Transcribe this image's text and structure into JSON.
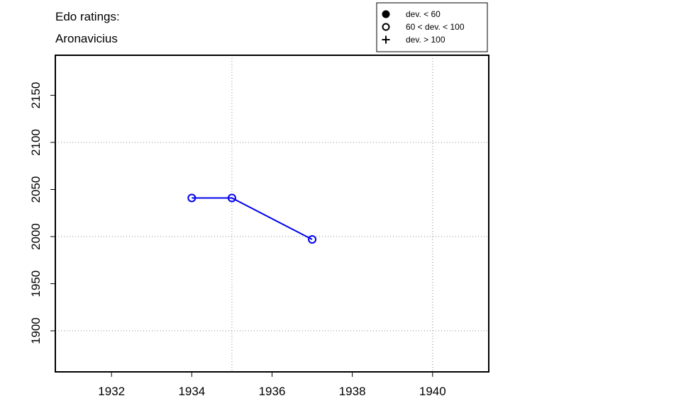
{
  "chart_data": {
    "type": "line",
    "title": "Edo ratings:",
    "subtitle": "Aronavicius",
    "x": [
      1934,
      1935,
      1937
    ],
    "series": [
      {
        "values": [
          2041,
          2041,
          1997
        ],
        "color": "#0000ee",
        "marker": "open-circle"
      }
    ],
    "xlim": [
      1930.6,
      1941.4
    ],
    "xticks": [
      1932,
      1934,
      1936,
      1938,
      1940
    ],
    "ylim": [
      1856.4,
      2192.5
    ],
    "yticks": [
      1900,
      1950,
      2000,
      2050,
      2100,
      2150
    ],
    "xgrid": [
      1935,
      1940
    ],
    "ygrid": [
      1900,
      2000,
      2100
    ],
    "legend": [
      {
        "label": "dev. < 60",
        "marker": "filled-circle"
      },
      {
        "label": "60 < dev. < 100",
        "marker": "open-circle"
      },
      {
        "label": "dev. > 100",
        "marker": "plus"
      }
    ]
  }
}
